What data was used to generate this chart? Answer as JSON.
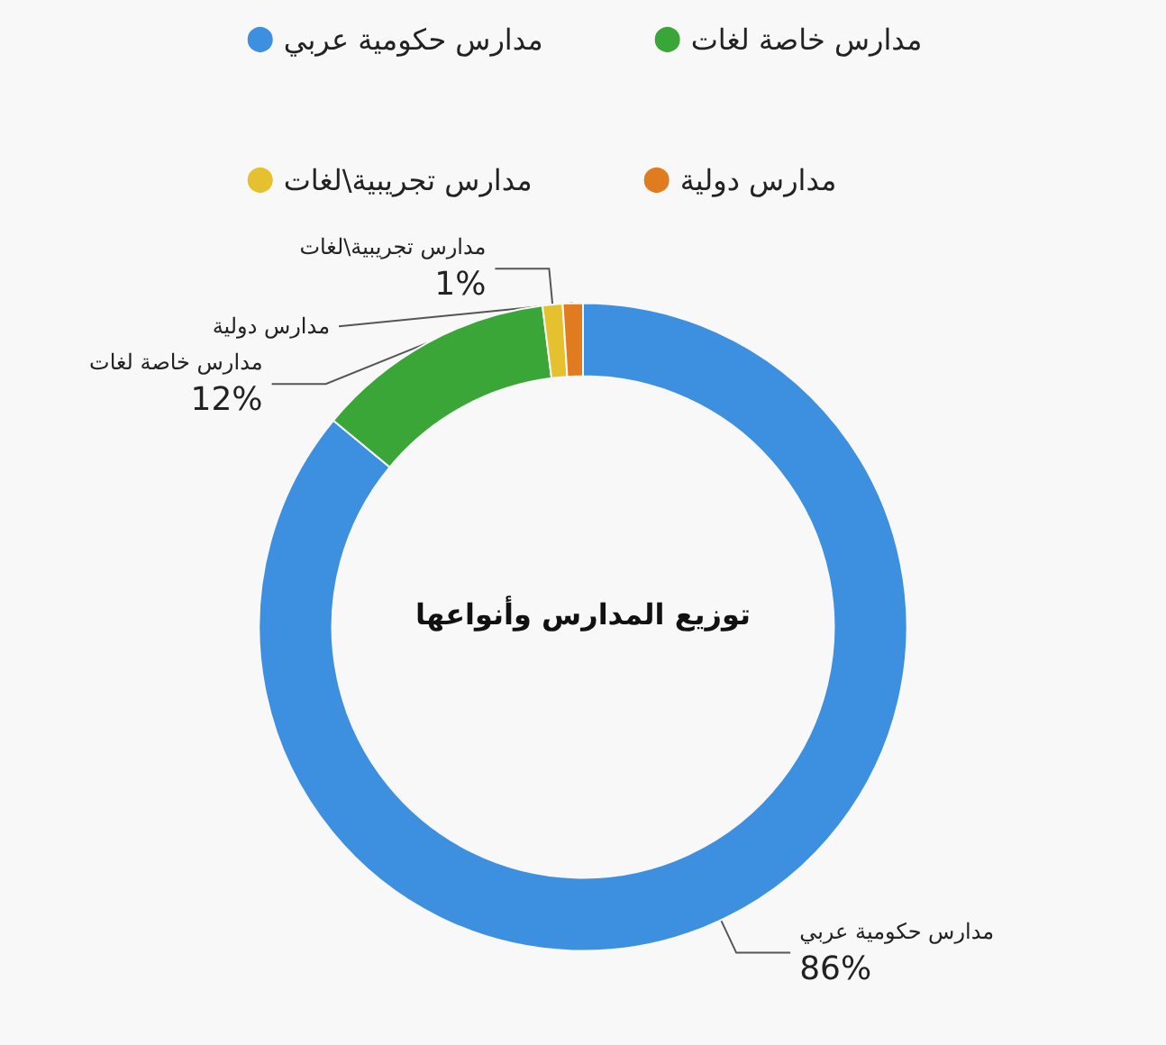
{
  "chart_data": {
    "type": "donut",
    "title": "توزيع المدارس وأنواعها",
    "categories": [
      "مدارس حكومية عربي",
      "مدارس خاصة لغات",
      "مدارس تجريبية\\لغات",
      "مدارس دولية"
    ],
    "values": [
      86,
      12,
      1,
      1
    ],
    "value_labels": [
      "86%",
      "12%",
      "1%",
      null
    ],
    "colors": [
      "#3d8fe0",
      "#3aa637",
      "#e6c12f",
      "#e07b1f"
    ],
    "legend": "top"
  }
}
